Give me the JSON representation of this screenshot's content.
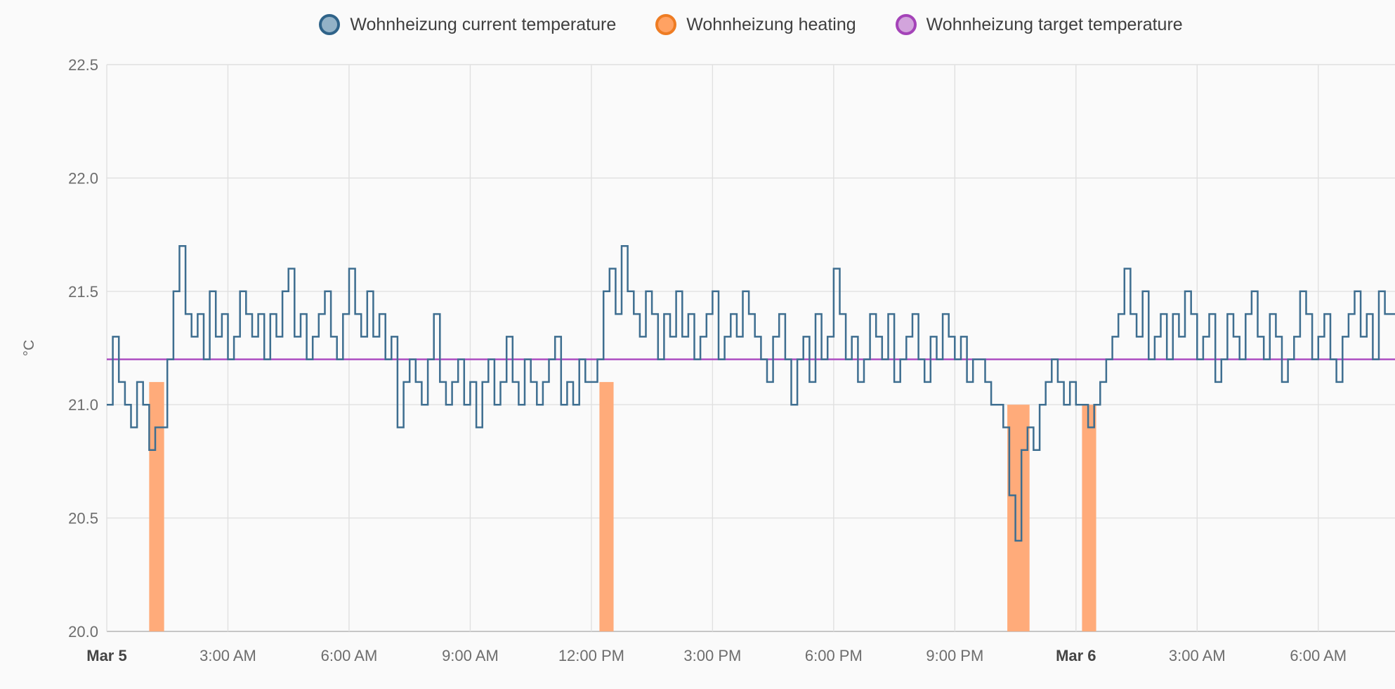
{
  "page": {
    "background": "#fafafa"
  },
  "legend": {
    "items": [
      {
        "label": "Wohnheizung current temperature",
        "fill": "#93b2c7",
        "stroke": "#2f6389"
      },
      {
        "label": "Wohnheizung heating",
        "fill": "#ffa263",
        "stroke": "#ee7c23"
      },
      {
        "label": "Wohnheizung target temperature",
        "fill": "#d2a4dc",
        "stroke": "#a443b8"
      }
    ]
  },
  "chart_data": {
    "type": "line",
    "ylabel": "°C",
    "ylim": [
      20.0,
      22.5
    ],
    "yticks": [
      20.0,
      20.5,
      21.0,
      21.5,
      22.0,
      22.5
    ],
    "x_unit": "hours since Mar 5 12:00 AM",
    "xlim": [
      0,
      31.9
    ],
    "grid": true,
    "legend_position": "top",
    "style": {
      "background": "#fafafa",
      "grid_color": "#e0e0e0",
      "axis_color": "#c6c6c6",
      "tick_color": "#6d6d6d",
      "tick_bold_color": "#454545"
    },
    "xticks": [
      {
        "t": 0,
        "label": "Mar 5",
        "bold": true
      },
      {
        "t": 3,
        "label": "3:00 AM"
      },
      {
        "t": 6,
        "label": "6:00 AM"
      },
      {
        "t": 9,
        "label": "9:00 AM"
      },
      {
        "t": 12,
        "label": "12:00 PM"
      },
      {
        "t": 15,
        "label": "3:00 PM"
      },
      {
        "t": 18,
        "label": "6:00 PM"
      },
      {
        "t": 21,
        "label": "9:00 PM"
      },
      {
        "t": 24,
        "label": "Mar 6",
        "bold": true
      },
      {
        "t": 27,
        "label": "3:00 AM"
      },
      {
        "t": 30,
        "label": "6:00 AM"
      }
    ],
    "series": [
      {
        "name": "Wohnheizung current temperature",
        "kind": "step-line",
        "color": "#3e6e90",
        "t0": 0,
        "dt": 0.15,
        "values": [
          21.0,
          21.3,
          21.1,
          21.0,
          20.9,
          21.1,
          21.0,
          20.8,
          20.9,
          20.9,
          21.2,
          21.5,
          21.7,
          21.4,
          21.3,
          21.4,
          21.2,
          21.5,
          21.3,
          21.4,
          21.2,
          21.3,
          21.5,
          21.4,
          21.3,
          21.4,
          21.2,
          21.4,
          21.3,
          21.5,
          21.6,
          21.3,
          21.4,
          21.2,
          21.3,
          21.4,
          21.5,
          21.3,
          21.2,
          21.4,
          21.6,
          21.4,
          21.3,
          21.5,
          21.3,
          21.4,
          21.2,
          21.3,
          20.9,
          21.1,
          21.2,
          21.1,
          21.0,
          21.2,
          21.4,
          21.1,
          21.0,
          21.1,
          21.2,
          21.0,
          21.1,
          20.9,
          21.1,
          21.2,
          21.0,
          21.1,
          21.3,
          21.1,
          21.0,
          21.2,
          21.1,
          21.0,
          21.1,
          21.2,
          21.3,
          21.0,
          21.1,
          21.0,
          21.2,
          21.1,
          21.1,
          21.2,
          21.5,
          21.6,
          21.4,
          21.7,
          21.5,
          21.4,
          21.3,
          21.5,
          21.4,
          21.2,
          21.4,
          21.3,
          21.5,
          21.3,
          21.4,
          21.2,
          21.3,
          21.4,
          21.5,
          21.2,
          21.3,
          21.4,
          21.3,
          21.5,
          21.4,
          21.3,
          21.2,
          21.1,
          21.3,
          21.4,
          21.2,
          21.0,
          21.2,
          21.3,
          21.1,
          21.4,
          21.2,
          21.3,
          21.6,
          21.4,
          21.2,
          21.3,
          21.1,
          21.2,
          21.4,
          21.3,
          21.2,
          21.4,
          21.1,
          21.2,
          21.3,
          21.4,
          21.2,
          21.1,
          21.3,
          21.2,
          21.4,
          21.3,
          21.2,
          21.3,
          21.1,
          21.2,
          21.2,
          21.1,
          21.0,
          21.0,
          20.9,
          20.6,
          20.4,
          20.8,
          20.9,
          20.8,
          21.0,
          21.1,
          21.2,
          21.1,
          21.0,
          21.1,
          21.0,
          21.0,
          20.9,
          21.0,
          21.1,
          21.2,
          21.3,
          21.4,
          21.6,
          21.4,
          21.3,
          21.5,
          21.2,
          21.3,
          21.4,
          21.2,
          21.4,
          21.3,
          21.5,
          21.4,
          21.2,
          21.3,
          21.4,
          21.1,
          21.2,
          21.4,
          21.3,
          21.2,
          21.4,
          21.5,
          21.3,
          21.2,
          21.4,
          21.3,
          21.1,
          21.2,
          21.3,
          21.5,
          21.4,
          21.2,
          21.3,
          21.4,
          21.2,
          21.1,
          21.3,
          21.4,
          21.5,
          21.3,
          21.4,
          21.2,
          21.5,
          21.4
        ]
      },
      {
        "name": "Wohnheizung heating",
        "kind": "bars",
        "color": "#ffab7a",
        "base": 20.0,
        "intervals": [
          {
            "start": 1.05,
            "end": 1.42,
            "top": 21.1
          },
          {
            "start": 12.2,
            "end": 12.55,
            "top": 21.1
          },
          {
            "start": 22.3,
            "end": 22.85,
            "top": 21.0
          },
          {
            "start": 24.15,
            "end": 24.5,
            "top": 21.0
          }
        ]
      },
      {
        "name": "Wohnheizung target temperature",
        "kind": "hline",
        "color": "#ad4ec2",
        "value": 21.2
      }
    ]
  }
}
